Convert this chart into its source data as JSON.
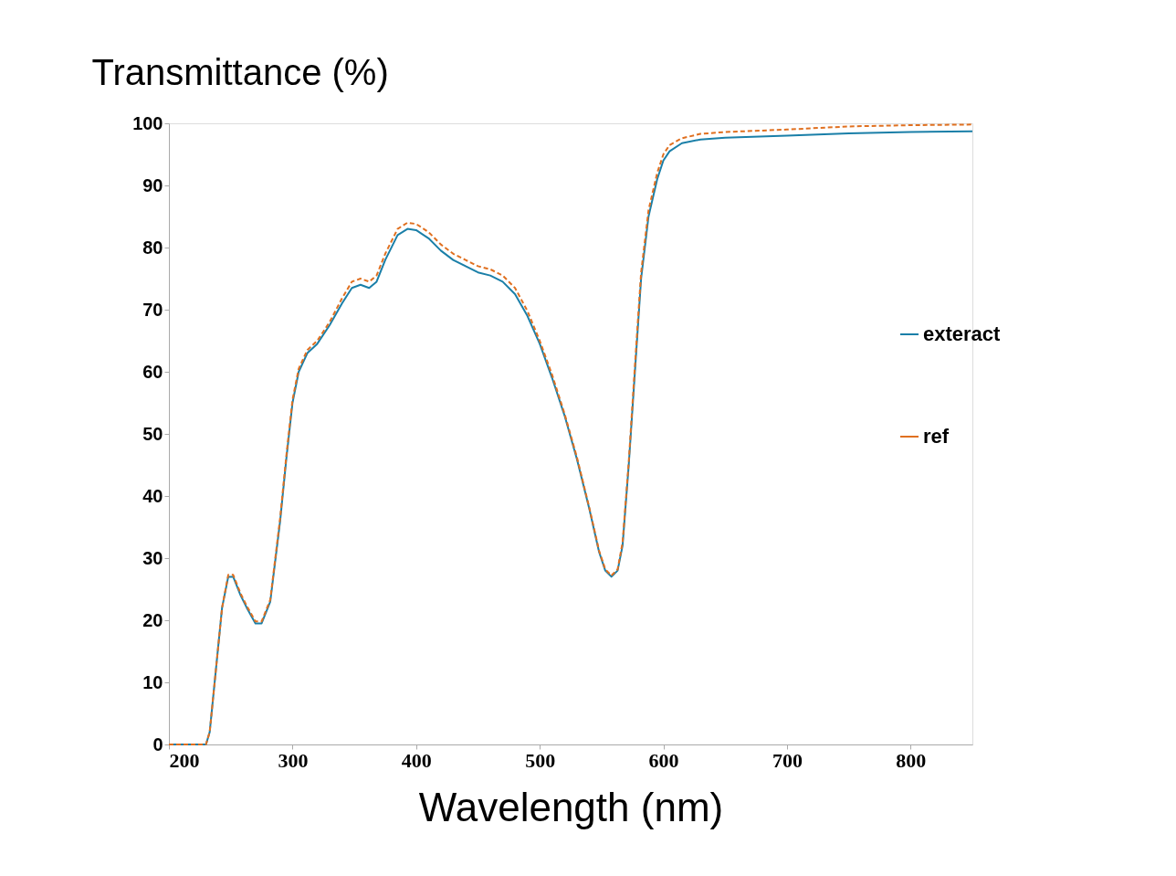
{
  "chart_data": {
    "type": "line",
    "xlabel": "Wavelength (nm)",
    "ylabel": "Transmittance (%)",
    "xlim": [
      200,
      850
    ],
    "xticks": [
      200,
      300,
      400,
      500,
      600,
      700,
      800
    ],
    "ylim": [
      0,
      100
    ],
    "yticks": [
      0,
      10,
      20,
      30,
      40,
      50,
      60,
      70,
      80,
      90,
      100
    ],
    "grid": false,
    "legend": "right",
    "x": [
      200,
      230,
      233,
      238,
      243,
      248,
      252,
      258,
      263,
      270,
      275,
      282,
      290,
      295,
      300,
      305,
      312,
      320,
      330,
      340,
      348,
      355,
      362,
      368,
      375,
      385,
      393,
      400,
      410,
      420,
      430,
      440,
      450,
      460,
      470,
      480,
      490,
      500,
      510,
      520,
      530,
      540,
      548,
      553,
      558,
      563,
      567,
      572,
      577,
      582,
      588,
      595,
      600,
      605,
      615,
      630,
      650,
      700,
      750,
      800,
      850
    ],
    "series": [
      {
        "name": "exteract",
        "color": "#1a7fa8",
        "line_style": "solid",
        "values": [
          0,
          0,
          2,
          12,
          22,
          27,
          27,
          24,
          22,
          19.5,
          19.5,
          23,
          36,
          46,
          55,
          60,
          63,
          64.5,
          67.5,
          71,
          73.5,
          74,
          73.5,
          74.5,
          78,
          82,
          83,
          82.8,
          81.5,
          79.5,
          78,
          77,
          76,
          75.5,
          74.5,
          72.5,
          69,
          64.5,
          59,
          53,
          46,
          38,
          31,
          28,
          27,
          28,
          32,
          45,
          60,
          75,
          85,
          91,
          94,
          95.5,
          96.8,
          97.4,
          97.7,
          98,
          98.4,
          98.6,
          98.7
        ]
      },
      {
        "name": "ref",
        "color": "#e07020",
        "line_style": "dashed",
        "values": [
          0,
          0,
          2,
          12,
          22,
          27.3,
          27.3,
          24.3,
          22.3,
          19.8,
          19.8,
          23.3,
          36.5,
          46.5,
          55.5,
          60.5,
          63.5,
          65,
          68,
          71.8,
          74.5,
          75,
          74.5,
          75.5,
          79,
          83,
          84,
          83.8,
          82.5,
          80.5,
          79,
          78,
          77,
          76.5,
          75.5,
          73.5,
          69.8,
          65,
          59.5,
          53.3,
          46.3,
          38.2,
          31.2,
          28.2,
          27.2,
          28.2,
          32.5,
          45.5,
          61,
          76,
          86,
          92,
          95,
          96.5,
          97.6,
          98.3,
          98.6,
          99,
          99.5,
          99.7,
          99.8
        ]
      }
    ]
  }
}
